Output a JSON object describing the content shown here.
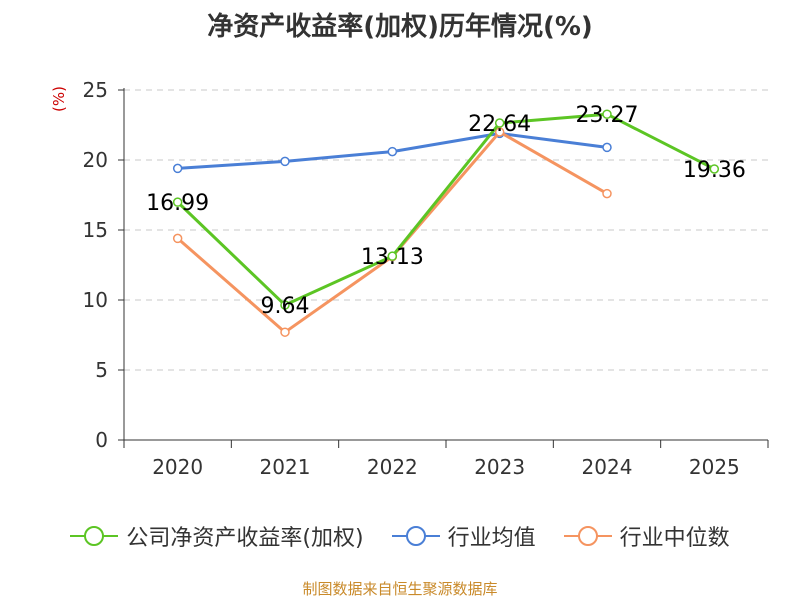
{
  "chart_data": {
    "type": "line",
    "title": "净资产收益率(加权)历年情况(%)",
    "ylabel": "(%)",
    "xlabel": "",
    "categories": [
      "2020",
      "2021",
      "2022",
      "2023",
      "2024",
      "2025"
    ],
    "ylim": [
      0,
      25
    ],
    "yticks": [
      0,
      5,
      10,
      15,
      20,
      25
    ],
    "grid": true,
    "legend_position": "bottom",
    "series": [
      {
        "name": "公司净资产收益率(加权)",
        "color": "#5cc524",
        "values": [
          16.99,
          9.64,
          13.13,
          22.64,
          23.27,
          19.36
        ],
        "labels": [
          "16.99",
          "9.64",
          "13.13",
          "22.64",
          "23.27",
          "19.36"
        ]
      },
      {
        "name": "行业均值",
        "color": "#4a7fd6",
        "values": [
          19.4,
          19.9,
          20.6,
          21.9,
          20.9,
          null
        ]
      },
      {
        "name": "行业中位数",
        "color": "#f59460",
        "values": [
          14.4,
          7.7,
          13.1,
          22.0,
          17.6,
          null
        ]
      }
    ]
  },
  "source": "制图数据来自恒生聚源数据库"
}
